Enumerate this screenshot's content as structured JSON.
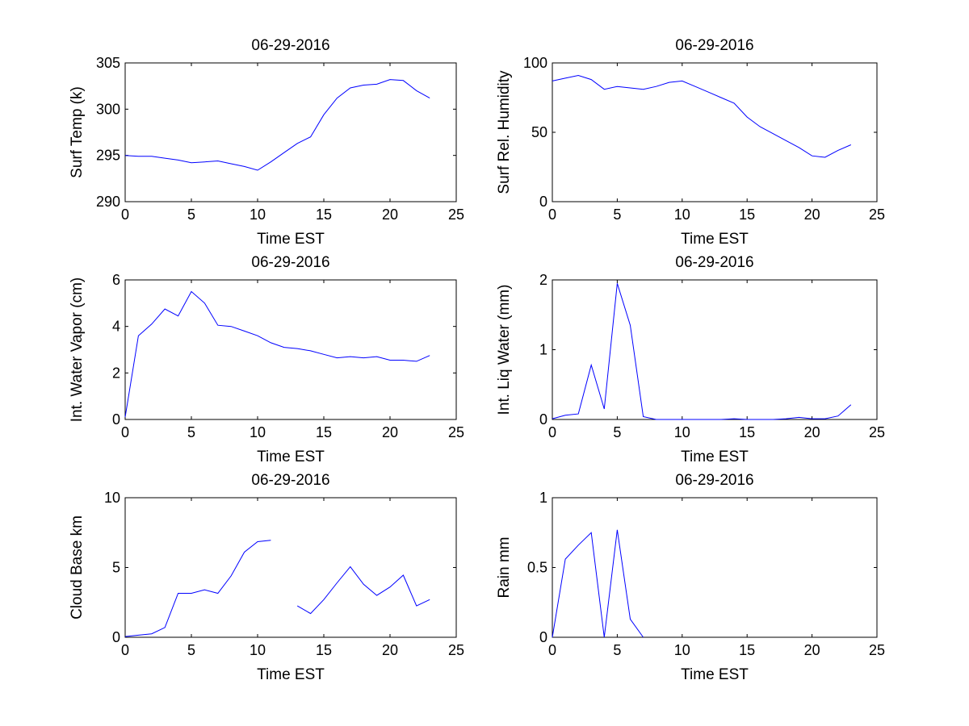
{
  "figure": {
    "background": "#ffffff",
    "line_color": "#0000ff",
    "axis_color": "#000000"
  },
  "chart_data": [
    {
      "type": "line",
      "title": "06-29-2016",
      "xlabel": "Time EST",
      "ylabel": "Surf Temp (k)",
      "xlim": [
        0,
        25
      ],
      "ylim": [
        290,
        305
      ],
      "xticks": [
        0,
        5,
        10,
        15,
        20,
        25
      ],
      "yticks": [
        290,
        295,
        300,
        305
      ],
      "grid": false,
      "series": [
        {
          "name": "Surf Temp",
          "x": [
            0,
            1,
            2,
            3,
            4,
            5,
            6,
            7,
            8,
            9,
            10,
            11,
            12,
            13,
            14,
            15,
            16,
            17,
            18,
            19,
            20,
            21,
            22,
            23
          ],
          "y": [
            295.0,
            294.9,
            294.9,
            294.7,
            294.5,
            294.2,
            294.3,
            294.4,
            294.1,
            293.8,
            293.4,
            294.3,
            295.3,
            296.3,
            297.0,
            299.4,
            301.2,
            302.3,
            302.6,
            302.7,
            303.2,
            303.1,
            302.0,
            301.2
          ]
        }
      ]
    },
    {
      "type": "line",
      "title": "06-29-2016",
      "xlabel": "Time EST",
      "ylabel": "Surf Rel. Humidity",
      "xlim": [
        0,
        25
      ],
      "ylim": [
        0,
        100
      ],
      "xticks": [
        0,
        5,
        10,
        15,
        20,
        25
      ],
      "yticks": [
        0,
        50,
        100
      ],
      "grid": false,
      "series": [
        {
          "name": "Surf Rel. Humidity",
          "x": [
            0,
            1,
            2,
            3,
            4,
            5,
            6,
            7,
            8,
            9,
            10,
            11,
            12,
            13,
            14,
            15,
            16,
            17,
            18,
            19,
            20,
            21,
            22,
            23
          ],
          "y": [
            87,
            89,
            91,
            88,
            81,
            83,
            82,
            81,
            83,
            86,
            87,
            83,
            79,
            75,
            71,
            61,
            54,
            49,
            44,
            39,
            33,
            32,
            37,
            41
          ]
        }
      ]
    },
    {
      "type": "line",
      "title": "06-29-2016",
      "xlabel": "Time EST",
      "ylabel": "Int. Water Vapor (cm)",
      "xlim": [
        0,
        25
      ],
      "ylim": [
        0,
        6
      ],
      "xticks": [
        0,
        5,
        10,
        15,
        20,
        25
      ],
      "yticks": [
        0,
        2,
        4,
        6
      ],
      "grid": false,
      "series": [
        {
          "name": "Int. Water Vapor",
          "x": [
            0,
            1,
            2,
            3,
            4,
            5,
            6,
            7,
            8,
            9,
            10,
            11,
            12,
            13,
            14,
            15,
            16,
            17,
            18,
            19,
            20,
            21,
            22,
            23
          ],
          "y": [
            0.1,
            3.6,
            4.1,
            4.75,
            4.45,
            5.5,
            5.0,
            4.05,
            4.0,
            3.8,
            3.6,
            3.3,
            3.1,
            3.05,
            2.95,
            2.8,
            2.65,
            2.7,
            2.65,
            2.7,
            2.55,
            2.55,
            2.5,
            2.75
          ]
        }
      ]
    },
    {
      "type": "line",
      "title": "06-29-2016",
      "xlabel": "Time EST",
      "ylabel": "Int. Liq Water (mm)",
      "xlim": [
        0,
        25
      ],
      "ylim": [
        0,
        2
      ],
      "xticks": [
        0,
        5,
        10,
        15,
        20,
        25
      ],
      "yticks": [
        0,
        1,
        2
      ],
      "grid": false,
      "series": [
        {
          "name": "Int. Liq Water",
          "x": [
            0,
            1,
            2,
            3,
            4,
            5,
            6,
            7,
            8,
            9,
            10,
            11,
            12,
            13,
            14,
            15,
            16,
            17,
            18,
            19,
            20,
            21,
            22,
            23
          ],
          "y": [
            0.01,
            0.06,
            0.08,
            0.78,
            0.15,
            1.95,
            1.35,
            0.04,
            0.0,
            0.0,
            0.0,
            0.0,
            0.0,
            0.0,
            0.01,
            0.0,
            0.0,
            0.0,
            0.01,
            0.03,
            0.01,
            0.01,
            0.05,
            0.21
          ]
        }
      ]
    },
    {
      "type": "line",
      "title": "06-29-2016",
      "xlabel": "Time EST",
      "ylabel": "Cloud Base km",
      "xlim": [
        0,
        25
      ],
      "ylim": [
        0,
        10
      ],
      "xticks": [
        0,
        5,
        10,
        15,
        20,
        25
      ],
      "yticks": [
        0,
        5,
        10
      ],
      "grid": false,
      "series": [
        {
          "name": "Cloud Base",
          "x": [
            0,
            1,
            2,
            3,
            4,
            5,
            6,
            7,
            8,
            9,
            10,
            11,
            12,
            13,
            14,
            15,
            16,
            17,
            18,
            19,
            20,
            21,
            22,
            23
          ],
          "y": [
            0.05,
            0.15,
            0.25,
            0.7,
            3.15,
            3.15,
            3.4,
            3.15,
            4.4,
            6.1,
            6.85,
            6.95,
            null,
            2.25,
            1.7,
            2.7,
            3.9,
            5.05,
            3.8,
            3.0,
            3.6,
            4.45,
            2.25,
            2.7
          ]
        }
      ]
    },
    {
      "type": "line",
      "title": "06-29-2016",
      "xlabel": "Time EST",
      "ylabel": "Rain mm",
      "xlim": [
        0,
        25
      ],
      "ylim": [
        0,
        1
      ],
      "xticks": [
        0,
        5,
        10,
        15,
        20,
        25
      ],
      "yticks": [
        0,
        0.5,
        1
      ],
      "grid": false,
      "series": [
        {
          "name": "Rain",
          "x": [
            0,
            1,
            2,
            3,
            4,
            5,
            6,
            7
          ],
          "y": [
            0.0,
            0.56,
            0.66,
            0.75,
            0.0,
            0.77,
            0.13,
            0.0
          ]
        }
      ]
    }
  ]
}
